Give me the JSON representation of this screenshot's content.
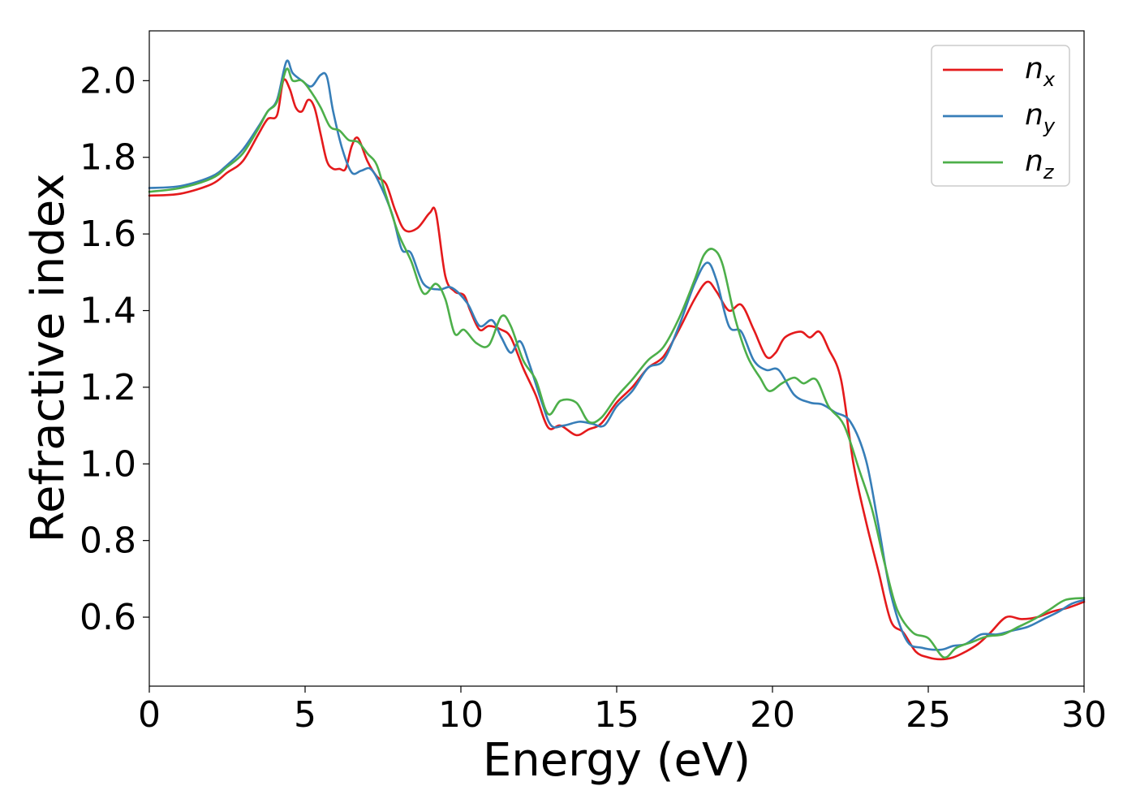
{
  "chart_data": {
    "type": "line",
    "title": "",
    "xlabel": "Energy (eV)",
    "ylabel": "Refractive index",
    "xlim": [
      0,
      30
    ],
    "ylim": [
      0.42,
      2.13
    ],
    "xticks": [
      0,
      5,
      10,
      15,
      20,
      25,
      30
    ],
    "yticks": [
      0.6,
      0.8,
      1.0,
      1.2,
      1.4,
      1.6,
      1.8,
      2.0
    ],
    "grid": false,
    "legend_position": "top-right",
    "series": [
      {
        "name": "n_x",
        "label_base": "n",
        "label_sub": "x",
        "color": "#e41a1c",
        "points": [
          [
            0,
            1.7
          ],
          [
            1,
            1.705
          ],
          [
            2,
            1.73
          ],
          [
            2.5,
            1.76
          ],
          [
            3,
            1.79
          ],
          [
            3.5,
            1.86
          ],
          [
            3.8,
            1.9
          ],
          [
            4.1,
            1.91
          ],
          [
            4.3,
            2.0
          ],
          [
            4.5,
            1.98
          ],
          [
            4.7,
            1.93
          ],
          [
            4.9,
            1.92
          ],
          [
            5.1,
            1.95
          ],
          [
            5.3,
            1.93
          ],
          [
            5.5,
            1.86
          ],
          [
            5.7,
            1.79
          ],
          [
            5.9,
            1.77
          ],
          [
            6.1,
            1.77
          ],
          [
            6.3,
            1.77
          ],
          [
            6.5,
            1.83
          ],
          [
            6.7,
            1.85
          ],
          [
            7.0,
            1.79
          ],
          [
            7.3,
            1.75
          ],
          [
            7.6,
            1.73
          ],
          [
            7.9,
            1.66
          ],
          [
            8.2,
            1.61
          ],
          [
            8.6,
            1.615
          ],
          [
            9.0,
            1.655
          ],
          [
            9.2,
            1.655
          ],
          [
            9.5,
            1.49
          ],
          [
            9.8,
            1.45
          ],
          [
            10.1,
            1.44
          ],
          [
            10.3,
            1.4
          ],
          [
            10.6,
            1.35
          ],
          [
            10.9,
            1.36
          ],
          [
            11.3,
            1.35
          ],
          [
            11.6,
            1.33
          ],
          [
            12.0,
            1.25
          ],
          [
            12.4,
            1.18
          ],
          [
            12.8,
            1.095
          ],
          [
            13.2,
            1.1
          ],
          [
            13.7,
            1.075
          ],
          [
            14.1,
            1.09
          ],
          [
            14.5,
            1.105
          ],
          [
            15.0,
            1.16
          ],
          [
            15.5,
            1.2
          ],
          [
            16.0,
            1.25
          ],
          [
            16.5,
            1.28
          ],
          [
            17.0,
            1.35
          ],
          [
            17.5,
            1.43
          ],
          [
            17.9,
            1.475
          ],
          [
            18.2,
            1.45
          ],
          [
            18.6,
            1.4
          ],
          [
            19.0,
            1.415
          ],
          [
            19.4,
            1.35
          ],
          [
            19.8,
            1.28
          ],
          [
            20.1,
            1.29
          ],
          [
            20.4,
            1.33
          ],
          [
            20.9,
            1.345
          ],
          [
            21.2,
            1.33
          ],
          [
            21.5,
            1.345
          ],
          [
            21.8,
            1.3
          ],
          [
            22.2,
            1.22
          ],
          [
            22.6,
            1.0
          ],
          [
            23.0,
            0.85
          ],
          [
            23.4,
            0.72
          ],
          [
            23.8,
            0.59
          ],
          [
            24.2,
            0.56
          ],
          [
            24.6,
            0.51
          ],
          [
            25.0,
            0.495
          ],
          [
            25.4,
            0.49
          ],
          [
            25.8,
            0.495
          ],
          [
            26.2,
            0.51
          ],
          [
            26.6,
            0.53
          ],
          [
            27.0,
            0.56
          ],
          [
            27.5,
            0.6
          ],
          [
            28.0,
            0.595
          ],
          [
            28.5,
            0.6
          ],
          [
            29.0,
            0.615
          ],
          [
            29.5,
            0.625
          ],
          [
            30.0,
            0.64
          ]
        ]
      },
      {
        "name": "n_y",
        "label_base": "n",
        "label_sub": "y",
        "color": "#377eb8",
        "points": [
          [
            0,
            1.72
          ],
          [
            1,
            1.725
          ],
          [
            2,
            1.75
          ],
          [
            2.5,
            1.78
          ],
          [
            3,
            1.82
          ],
          [
            3.5,
            1.88
          ],
          [
            3.8,
            1.92
          ],
          [
            4.1,
            1.95
          ],
          [
            4.4,
            2.05
          ],
          [
            4.6,
            2.02
          ],
          [
            4.9,
            2.0
          ],
          [
            5.2,
            1.985
          ],
          [
            5.5,
            2.015
          ],
          [
            5.7,
            2.01
          ],
          [
            5.9,
            1.92
          ],
          [
            6.2,
            1.82
          ],
          [
            6.5,
            1.76
          ],
          [
            6.8,
            1.765
          ],
          [
            7.1,
            1.77
          ],
          [
            7.4,
            1.73
          ],
          [
            7.8,
            1.65
          ],
          [
            8.1,
            1.56
          ],
          [
            8.4,
            1.55
          ],
          [
            8.8,
            1.47
          ],
          [
            9.3,
            1.455
          ],
          [
            9.7,
            1.46
          ],
          [
            10.2,
            1.42
          ],
          [
            10.6,
            1.36
          ],
          [
            11.0,
            1.375
          ],
          [
            11.3,
            1.33
          ],
          [
            11.6,
            1.29
          ],
          [
            11.9,
            1.32
          ],
          [
            12.2,
            1.26
          ],
          [
            12.6,
            1.16
          ],
          [
            12.9,
            1.1
          ],
          [
            13.3,
            1.1
          ],
          [
            13.8,
            1.11
          ],
          [
            14.2,
            1.105
          ],
          [
            14.6,
            1.1
          ],
          [
            15.0,
            1.15
          ],
          [
            15.5,
            1.19
          ],
          [
            16.0,
            1.25
          ],
          [
            16.5,
            1.27
          ],
          [
            17.0,
            1.36
          ],
          [
            17.5,
            1.47
          ],
          [
            17.9,
            1.525
          ],
          [
            18.2,
            1.48
          ],
          [
            18.6,
            1.36
          ],
          [
            19.0,
            1.345
          ],
          [
            19.4,
            1.27
          ],
          [
            19.8,
            1.245
          ],
          [
            20.2,
            1.245
          ],
          [
            20.7,
            1.18
          ],
          [
            21.2,
            1.16
          ],
          [
            21.6,
            1.155
          ],
          [
            22.0,
            1.135
          ],
          [
            22.5,
            1.11
          ],
          [
            23.0,
            1.01
          ],
          [
            23.4,
            0.84
          ],
          [
            23.8,
            0.66
          ],
          [
            24.3,
            0.54
          ],
          [
            24.8,
            0.52
          ],
          [
            25.4,
            0.515
          ],
          [
            25.8,
            0.525
          ],
          [
            26.2,
            0.53
          ],
          [
            26.7,
            0.555
          ],
          [
            27.2,
            0.555
          ],
          [
            27.7,
            0.565
          ],
          [
            28.2,
            0.575
          ],
          [
            28.7,
            0.595
          ],
          [
            29.2,
            0.615
          ],
          [
            29.6,
            0.635
          ],
          [
            30.0,
            0.645
          ]
        ]
      },
      {
        "name": "n_z",
        "label_base": "n",
        "label_sub": "z",
        "color": "#4daf4a",
        "points": [
          [
            0,
            1.71
          ],
          [
            1,
            1.72
          ],
          [
            2,
            1.745
          ],
          [
            2.5,
            1.775
          ],
          [
            3,
            1.81
          ],
          [
            3.5,
            1.875
          ],
          [
            3.8,
            1.92
          ],
          [
            4.1,
            1.945
          ],
          [
            4.4,
            2.03
          ],
          [
            4.6,
            2.0
          ],
          [
            4.9,
            2.0
          ],
          [
            5.2,
            1.97
          ],
          [
            5.5,
            1.93
          ],
          [
            5.8,
            1.88
          ],
          [
            6.1,
            1.87
          ],
          [
            6.4,
            1.845
          ],
          [
            6.7,
            1.84
          ],
          [
            7.0,
            1.81
          ],
          [
            7.3,
            1.78
          ],
          [
            7.6,
            1.7
          ],
          [
            8.0,
            1.6
          ],
          [
            8.4,
            1.53
          ],
          [
            8.8,
            1.445
          ],
          [
            9.2,
            1.47
          ],
          [
            9.5,
            1.43
          ],
          [
            9.8,
            1.34
          ],
          [
            10.1,
            1.35
          ],
          [
            10.5,
            1.315
          ],
          [
            10.9,
            1.31
          ],
          [
            11.3,
            1.385
          ],
          [
            11.6,
            1.36
          ],
          [
            12.0,
            1.27
          ],
          [
            12.4,
            1.22
          ],
          [
            12.8,
            1.13
          ],
          [
            13.2,
            1.165
          ],
          [
            13.7,
            1.16
          ],
          [
            14.1,
            1.11
          ],
          [
            14.5,
            1.12
          ],
          [
            15.0,
            1.175
          ],
          [
            15.5,
            1.22
          ],
          [
            16.0,
            1.27
          ],
          [
            16.5,
            1.305
          ],
          [
            17.0,
            1.38
          ],
          [
            17.5,
            1.48
          ],
          [
            17.8,
            1.545
          ],
          [
            18.1,
            1.56
          ],
          [
            18.4,
            1.52
          ],
          [
            18.8,
            1.38
          ],
          [
            19.2,
            1.28
          ],
          [
            19.6,
            1.225
          ],
          [
            19.9,
            1.19
          ],
          [
            20.3,
            1.21
          ],
          [
            20.7,
            1.225
          ],
          [
            21.0,
            1.21
          ],
          [
            21.4,
            1.22
          ],
          [
            21.8,
            1.15
          ],
          [
            22.3,
            1.1
          ],
          [
            22.8,
            0.98
          ],
          [
            23.2,
            0.88
          ],
          [
            23.6,
            0.74
          ],
          [
            24.0,
            0.62
          ],
          [
            24.5,
            0.56
          ],
          [
            25.0,
            0.545
          ],
          [
            25.5,
            0.495
          ],
          [
            25.9,
            0.52
          ],
          [
            26.4,
            0.535
          ],
          [
            26.9,
            0.55
          ],
          [
            27.4,
            0.555
          ],
          [
            27.9,
            0.575
          ],
          [
            28.4,
            0.595
          ],
          [
            28.9,
            0.62
          ],
          [
            29.4,
            0.645
          ],
          [
            30.0,
            0.65
          ]
        ]
      }
    ]
  }
}
